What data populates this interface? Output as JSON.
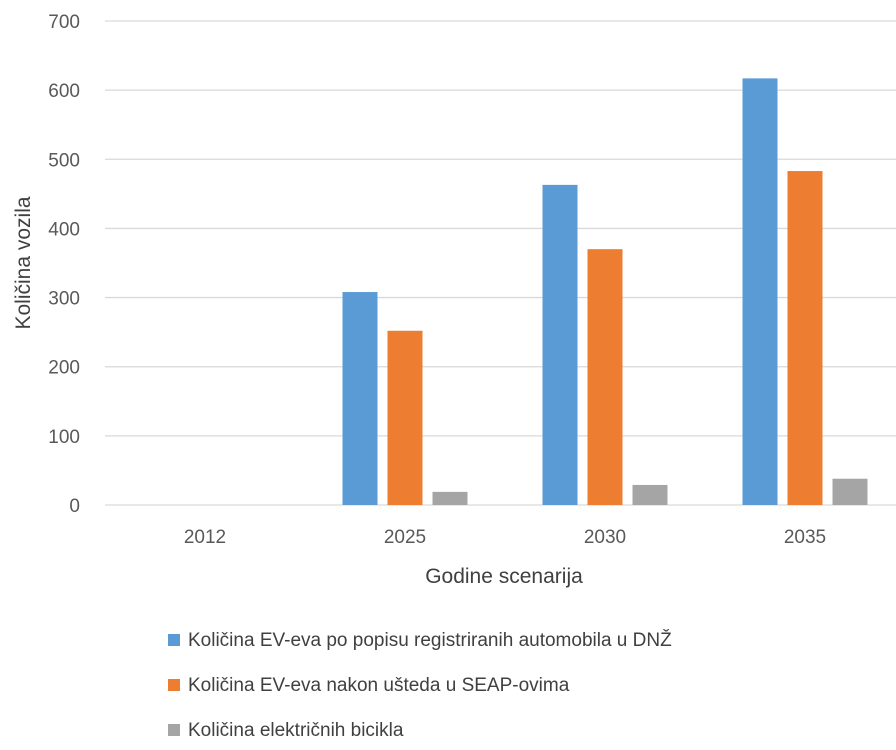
{
  "chart_data": {
    "type": "bar",
    "title": "",
    "xlabel": "Godine scenarija",
    "ylabel": "Količina vozila",
    "categories": [
      "2012",
      "2025",
      "2030",
      "2035"
    ],
    "ylim": [
      0,
      700
    ],
    "yticks": [
      0,
      100,
      200,
      300,
      400,
      500,
      600,
      700
    ],
    "grid": true,
    "legend_position": "bottom",
    "series": [
      {
        "name": "Količina EV-eva po popisu registriranih automobila u DNŽ",
        "color": "#5B9BD5",
        "values": [
          0,
          308,
          463,
          617
        ]
      },
      {
        "name": "Količina EV-eva nakon ušteda u SEAP-ovima",
        "color": "#ED7D31",
        "values": [
          0,
          252,
          370,
          483
        ]
      },
      {
        "name": "Količina električnih bicikla",
        "color": "#A5A5A5",
        "values": [
          0,
          19,
          29,
          38
        ]
      }
    ]
  }
}
